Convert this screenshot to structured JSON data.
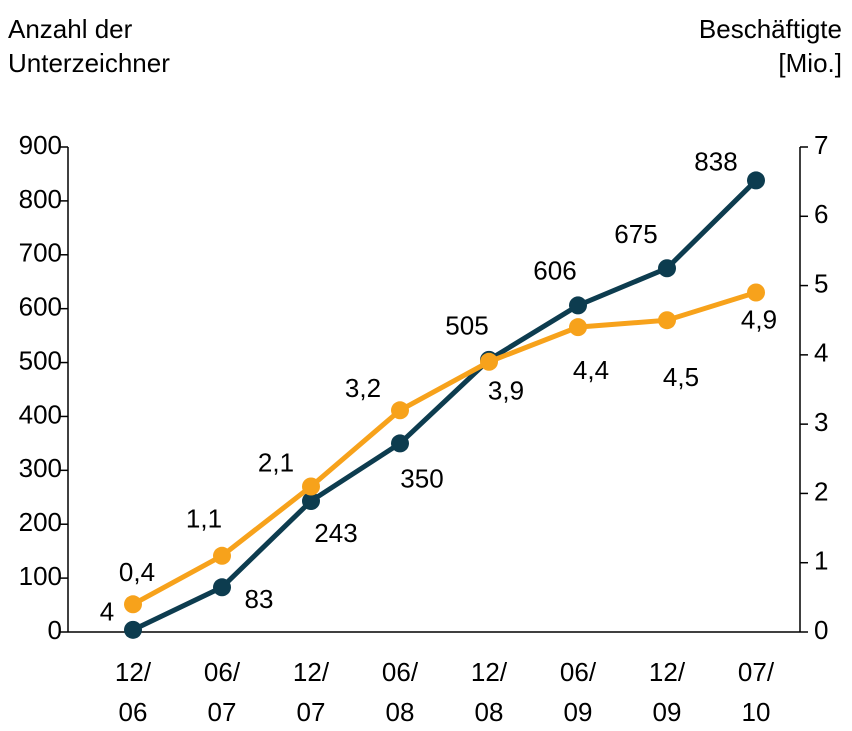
{
  "chart_data": {
    "type": "line",
    "y_label": "Anzahl der\nUnterzeichner",
    "y2_label": "Beschäftigte\n[Mio.]",
    "categories": [
      "12/\n06",
      "06/\n07",
      "12/\n07",
      "06/\n08",
      "12/\n08",
      "06/\n09",
      "12/\n09",
      "07/\n10"
    ],
    "series": [
      {
        "color": "#0d3c4f",
        "values": [
          4,
          83,
          243,
          350,
          505,
          606,
          675,
          838
        ]
      },
      {
        "color": "#f7a21b",
        "axis": "y2",
        "values": [
          0.4,
          1.1,
          2.1,
          3.2,
          3.9,
          4.4,
          4.5,
          4.9
        ],
        "value_labels": [
          "0,4",
          "1,1",
          "2,1",
          "3,2",
          "3,9",
          "4,4",
          "4,5",
          "4,9"
        ]
      }
    ],
    "ylim": [
      0,
      900
    ],
    "yticks": [
      0,
      100,
      200,
      300,
      400,
      500,
      600,
      700,
      800,
      900
    ],
    "y2lim": [
      0,
      7
    ],
    "y2ticks": [
      0,
      1,
      2,
      3,
      4,
      5,
      6,
      7
    ],
    "grid": false
  }
}
